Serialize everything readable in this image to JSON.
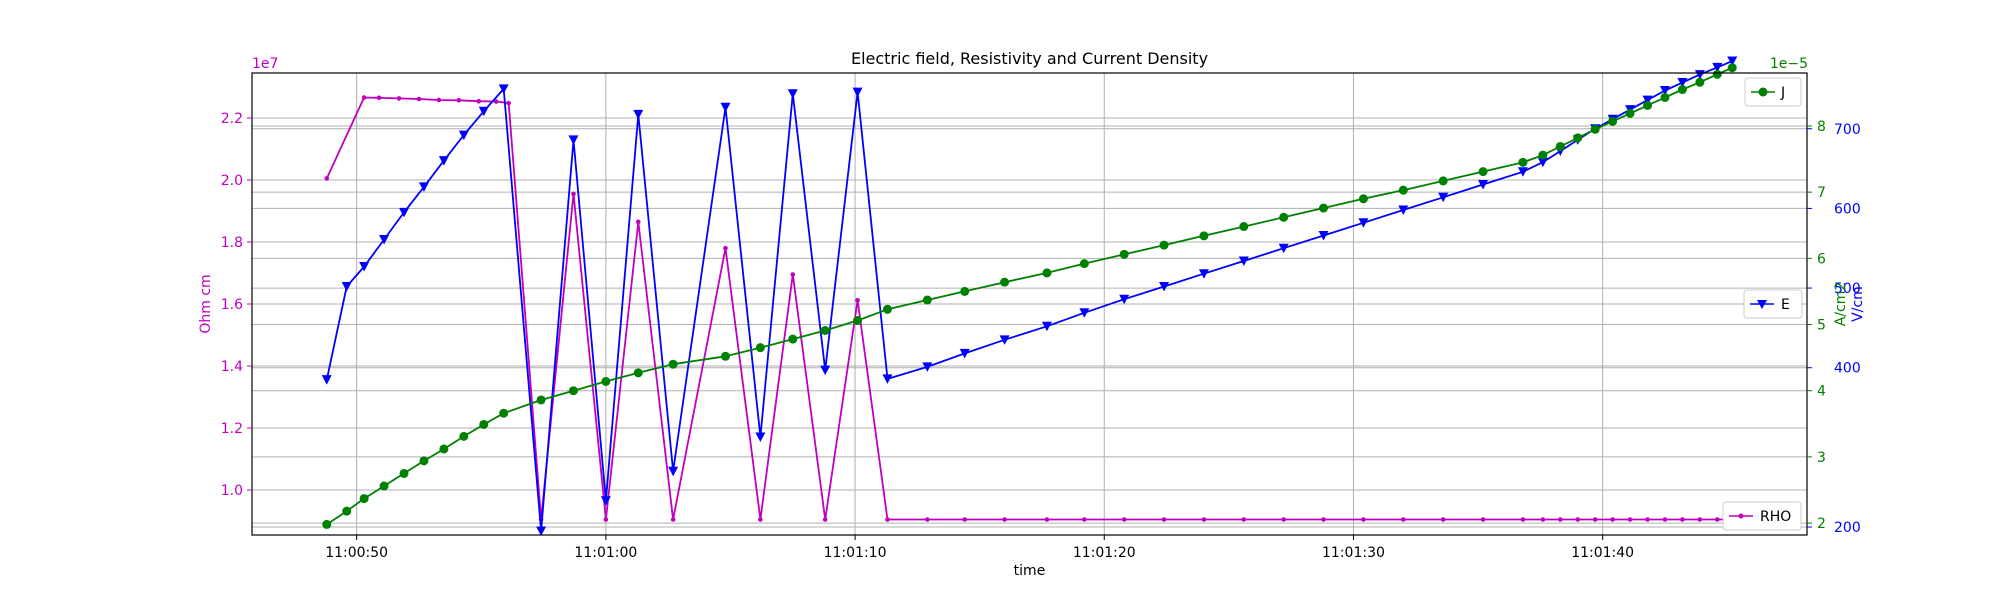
{
  "chart_data": {
    "type": "line",
    "title": "Electric field, Resistivity and Current Density",
    "xlabel": "time",
    "x_range_seconds": [
      45.8,
      108.2
    ],
    "x_ticks": [
      {
        "t": 50,
        "label": "11:00:50"
      },
      {
        "t": 60,
        "label": "11:01:00"
      },
      {
        "t": 70,
        "label": "11:01:10"
      },
      {
        "t": 80,
        "label": "11:01:20"
      },
      {
        "t": 90,
        "label": "11:01:30"
      },
      {
        "t": 100,
        "label": "11:01:40"
      }
    ],
    "axes": {
      "rho": {
        "label": "Ohm cm",
        "scale_text": "1e7",
        "color": "#bf00bf",
        "range": [
          0.855,
          2.345
        ],
        "ticks": [
          {
            "v": 1.0,
            "label": "1.0"
          },
          {
            "v": 1.2,
            "label": "1.2"
          },
          {
            "v": 1.4,
            "label": "1.4"
          },
          {
            "v": 1.6,
            "label": "1.6"
          },
          {
            "v": 1.8,
            "label": "1.8"
          },
          {
            "v": 2.0,
            "label": "2.0"
          },
          {
            "v": 2.2,
            "label": "2.2"
          }
        ]
      },
      "j": {
        "label": "A/cm2",
        "scale_text": "1e−5",
        "color": "#008000",
        "range": [
          1.82,
          8.8
        ],
        "ticks": [
          {
            "v": 2,
            "label": "2"
          },
          {
            "v": 3,
            "label": "3"
          },
          {
            "v": 4,
            "label": "4"
          },
          {
            "v": 5,
            "label": "5"
          },
          {
            "v": 6,
            "label": "6"
          },
          {
            "v": 7,
            "label": "7"
          },
          {
            "v": 8,
            "label": "8"
          }
        ]
      },
      "e": {
        "label": "V/cm",
        "color": "#0000ff",
        "range": [
          190,
          770
        ],
        "ticks": [
          {
            "v": 200,
            "label": "200"
          },
          {
            "v": 400,
            "label": "400"
          },
          {
            "v": 500,
            "label": "500"
          },
          {
            "v": 600,
            "label": "600"
          },
          {
            "v": 700,
            "label": "700"
          }
        ]
      }
    },
    "legend": {
      "j": {
        "label": "J",
        "placement": "top-right"
      },
      "e": {
        "label": "E",
        "placement": "center-right"
      },
      "rho": {
        "label": "RHO",
        "placement": "bottom-right"
      }
    },
    "series": [
      {
        "name": "RHO",
        "axis": "rho",
        "color": "#bf00bf",
        "marker": "dot",
        "points": [
          [
            48.8,
            2.005
          ],
          [
            50.3,
            2.266
          ],
          [
            50.9,
            2.265
          ],
          [
            51.7,
            2.263
          ],
          [
            52.5,
            2.261
          ],
          [
            53.3,
            2.258
          ],
          [
            54.1,
            2.257
          ],
          [
            54.9,
            2.254
          ],
          [
            55.6,
            2.253
          ],
          [
            56.1,
            2.248
          ],
          [
            57.4,
            0.905
          ],
          [
            58.7,
            1.955
          ],
          [
            60.0,
            0.905
          ],
          [
            61.3,
            1.865
          ],
          [
            62.7,
            0.905
          ],
          [
            64.8,
            1.78
          ],
          [
            66.2,
            0.905
          ],
          [
            67.5,
            1.695
          ],
          [
            68.8,
            0.905
          ],
          [
            70.1,
            1.612
          ],
          [
            71.3,
            0.905
          ],
          [
            72.9,
            0.905
          ],
          [
            74.4,
            0.905
          ],
          [
            76.0,
            0.905
          ],
          [
            77.7,
            0.905
          ],
          [
            79.2,
            0.905
          ],
          [
            80.8,
            0.905
          ],
          [
            82.4,
            0.905
          ],
          [
            84.0,
            0.905
          ],
          [
            85.6,
            0.905
          ],
          [
            87.2,
            0.905
          ],
          [
            88.8,
            0.905
          ],
          [
            90.4,
            0.905
          ],
          [
            92.0,
            0.905
          ],
          [
            93.6,
            0.905
          ],
          [
            95.2,
            0.905
          ],
          [
            96.8,
            0.905
          ],
          [
            97.6,
            0.905
          ],
          [
            98.3,
            0.905
          ],
          [
            99.0,
            0.905
          ],
          [
            99.7,
            0.905
          ],
          [
            100.4,
            0.905
          ],
          [
            101.1,
            0.905
          ],
          [
            101.8,
            0.905
          ],
          [
            102.5,
            0.905
          ],
          [
            103.2,
            0.905
          ],
          [
            103.9,
            0.905
          ],
          [
            104.6,
            0.905
          ],
          [
            105.2,
            0.905
          ]
        ]
      },
      {
        "name": "E",
        "axis": "e",
        "color": "#0000ff",
        "marker": "triangle-down",
        "points": [
          [
            48.8,
            385
          ],
          [
            49.6,
            502
          ],
          [
            50.3,
            527
          ],
          [
            51.1,
            561
          ],
          [
            51.9,
            595
          ],
          [
            52.7,
            627
          ],
          [
            53.5,
            660
          ],
          [
            54.3,
            692
          ],
          [
            55.1,
            722
          ],
          [
            55.9,
            750
          ],
          [
            57.4,
            195
          ],
          [
            58.7,
            686
          ],
          [
            60.0,
            233
          ],
          [
            61.3,
            718
          ],
          [
            62.7,
            270
          ],
          [
            64.8,
            727
          ],
          [
            66.2,
            313
          ],
          [
            67.5,
            744
          ],
          [
            68.8,
            397
          ],
          [
            70.1,
            746
          ],
          [
            71.3,
            386
          ],
          [
            72.9,
            401
          ],
          [
            74.4,
            418
          ],
          [
            76.0,
            435
          ],
          [
            77.7,
            452
          ],
          [
            79.2,
            469
          ],
          [
            80.8,
            486
          ],
          [
            82.4,
            502
          ],
          [
            84.0,
            518
          ],
          [
            85.6,
            534
          ],
          [
            87.2,
            550
          ],
          [
            88.8,
            566
          ],
          [
            90.4,
            582
          ],
          [
            92.0,
            598
          ],
          [
            93.6,
            614
          ],
          [
            95.2,
            630
          ],
          [
            96.8,
            646
          ],
          [
            97.6,
            658
          ],
          [
            98.3,
            672
          ],
          [
            99.0,
            686
          ],
          [
            99.7,
            700
          ],
          [
            100.4,
            712
          ],
          [
            101.1,
            724
          ],
          [
            101.8,
            736
          ],
          [
            102.5,
            748
          ],
          [
            103.2,
            758
          ],
          [
            103.9,
            768
          ],
          [
            104.6,
            777
          ],
          [
            105.2,
            785
          ]
        ]
      },
      {
        "name": "J",
        "axis": "j",
        "color": "#008000",
        "marker": "circle",
        "points": [
          [
            48.8,
            1.98
          ],
          [
            49.6,
            2.18
          ],
          [
            50.3,
            2.37
          ],
          [
            51.1,
            2.56
          ],
          [
            51.9,
            2.75
          ],
          [
            52.7,
            2.94
          ],
          [
            53.5,
            3.12
          ],
          [
            54.3,
            3.31
          ],
          [
            55.1,
            3.49
          ],
          [
            55.9,
            3.66
          ],
          [
            57.4,
            3.86
          ],
          [
            58.7,
            4.0
          ],
          [
            60.0,
            4.14
          ],
          [
            61.3,
            4.27
          ],
          [
            62.7,
            4.4
          ],
          [
            64.8,
            4.52
          ],
          [
            66.2,
            4.65
          ],
          [
            67.5,
            4.78
          ],
          [
            68.8,
            4.91
          ],
          [
            70.1,
            5.06
          ],
          [
            71.3,
            5.23
          ],
          [
            72.9,
            5.37
          ],
          [
            74.4,
            5.5
          ],
          [
            76.0,
            5.64
          ],
          [
            77.7,
            5.78
          ],
          [
            79.2,
            5.92
          ],
          [
            80.8,
            6.06
          ],
          [
            82.4,
            6.2
          ],
          [
            84.0,
            6.34
          ],
          [
            85.6,
            6.48
          ],
          [
            87.2,
            6.62
          ],
          [
            88.8,
            6.76
          ],
          [
            90.4,
            6.9
          ],
          [
            92.0,
            7.03
          ],
          [
            93.6,
            7.17
          ],
          [
            95.2,
            7.31
          ],
          [
            96.8,
            7.45
          ],
          [
            97.6,
            7.56
          ],
          [
            98.3,
            7.69
          ],
          [
            99.0,
            7.82
          ],
          [
            99.7,
            7.95
          ],
          [
            100.4,
            8.07
          ],
          [
            101.1,
            8.19
          ],
          [
            101.8,
            8.31
          ],
          [
            102.5,
            8.43
          ],
          [
            103.2,
            8.55
          ],
          [
            103.9,
            8.66
          ],
          [
            104.6,
            8.78
          ],
          [
            105.2,
            8.88
          ]
        ]
      }
    ]
  }
}
